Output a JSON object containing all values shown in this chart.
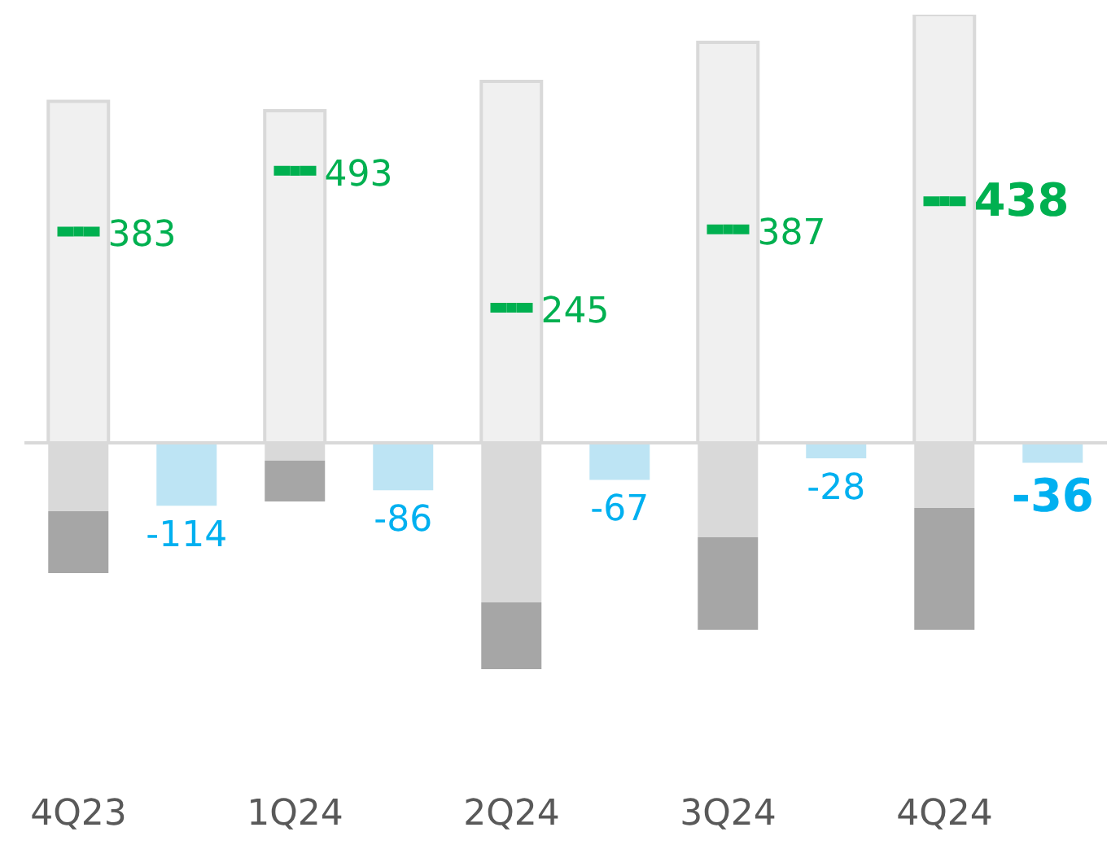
{
  "chart_data": {
    "type": "bar",
    "stacked": true,
    "categories": [
      "4Q23",
      null,
      "1Q24",
      null,
      "2Q24",
      null,
      "3Q24",
      null,
      "4Q24",
      null
    ],
    "series": [
      {
        "color": "#f0f0f0",
        "values": [
          619,
          null,
          602,
          null,
          655,
          null,
          726,
          null,
          776,
          null
        ]
      },
      {
        "color": "#d9d9d9",
        "values": [
          -124,
          null,
          -32,
          null,
          -289,
          null,
          -171,
          null,
          -118,
          null
        ]
      },
      {
        "color": "#a6a6a6",
        "values": [
          -112,
          null,
          -74,
          null,
          -121,
          null,
          -168,
          null,
          -221,
          null
        ]
      },
      {
        "color": "#bde4f4",
        "values": [
          null,
          -114,
          null,
          -86,
          null,
          -67,
          null,
          -28,
          null,
          -36
        ],
        "value_labels": [
          null,
          "-114",
          null,
          "-86",
          null,
          "-67",
          null,
          "-28",
          null,
          "-36"
        ]
      },
      {
        "type": "scatter",
        "color": "#00b050",
        "values": [
          383,
          null,
          493,
          null,
          245,
          null,
          387,
          null,
          438,
          null
        ],
        "value_labels": [
          "383",
          null,
          "493",
          null,
          "245",
          null,
          "387",
          null,
          "438",
          null
        ]
      }
    ],
    "tick_labels": "x"
  }
}
